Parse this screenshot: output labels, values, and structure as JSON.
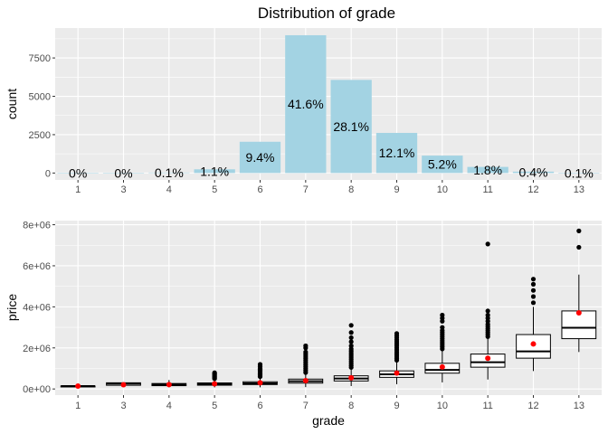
{
  "chart_data": [
    {
      "type": "bar",
      "title": "Distribution of grade",
      "xlabel": "",
      "ylabel": "count",
      "categories": [
        "1",
        "3",
        "4",
        "5",
        "6",
        "7",
        "8",
        "9",
        "10",
        "11",
        "12",
        "13"
      ],
      "values": [
        1,
        3,
        29,
        242,
        2038,
        8981,
        6068,
        2615,
        1134,
        399,
        90,
        13
      ],
      "data_labels": [
        "0%",
        "0%",
        "0.1%",
        "1.1%",
        "9.4%",
        "41.6%",
        "28.1%",
        "12.1%",
        "5.2%",
        "1.8%",
        "0.4%",
        "0.1%"
      ],
      "ylim": [
        -450,
        9450
      ],
      "yticks": [
        0,
        2500,
        5000,
        7500
      ],
      "ytick_labels": [
        "0",
        "2500",
        "5000",
        "7500"
      ],
      "colors": {
        "bar": "#a3d3e3",
        "panel": "#ebebeb",
        "grid": "#ffffff"
      }
    },
    {
      "type": "boxplot",
      "title": "",
      "xlabel": "grade",
      "ylabel": "price",
      "categories": [
        "1",
        "3",
        "4",
        "5",
        "6",
        "7",
        "8",
        "9",
        "10",
        "11",
        "12",
        "13"
      ],
      "boxes": [
        {
          "min": 142000,
          "q1": 142000,
          "median": 142000,
          "q3": 142000,
          "max": 142000,
          "mean": 142000,
          "outliers": []
        },
        {
          "min": 90000,
          "q1": 180000,
          "median": 262000,
          "q3": 300000,
          "max": 300000,
          "mean": 205667,
          "outliers": []
        },
        {
          "min": 80000,
          "q1": 160000,
          "median": 205000,
          "q3": 265000,
          "max": 435000,
          "mean": 214381,
          "outliers": []
        },
        {
          "min": 78000,
          "q1": 183000,
          "median": 228700,
          "q3": 294000,
          "max": 460000,
          "mean": 248524,
          "outliers": [
            500000,
            550000,
            600000,
            650000,
            700000,
            750000,
            790000
          ]
        },
        {
          "min": 82000,
          "q1": 215000,
          "median": 275000,
          "q3": 350000,
          "max": 550000,
          "mean": 301920,
          "outliers": [
            600000,
            650000,
            700000,
            750000,
            800000,
            850000,
            900000,
            950000,
            1000000,
            1100000,
            1200000
          ]
        },
        {
          "min": 90000,
          "q1": 285000,
          "median": 375000,
          "q3": 480000,
          "max": 770000,
          "mean": 402596,
          "outliers": [
            800000,
            900000,
            1000000,
            1100000,
            1200000,
            1300000,
            1400000,
            1500000,
            1600000,
            1700000,
            1800000,
            2000000,
            2100000
          ]
        },
        {
          "min": 140000,
          "q1": 390000,
          "median": 510000,
          "q3": 640000,
          "max": 1000000,
          "mean": 542896,
          "outliers": [
            1050000,
            1150000,
            1250000,
            1350000,
            1450000,
            1550000,
            1650000,
            1750000,
            1850000,
            1950000,
            2100000,
            2300000,
            2500000,
            2750000,
            3100000
          ]
        },
        {
          "min": 230000,
          "q1": 565000,
          "median": 715000,
          "q3": 880000,
          "max": 1350000,
          "mean": 773513,
          "outliers": [
            1400000,
            1500000,
            1600000,
            1700000,
            1800000,
            1900000,
            2000000,
            2100000,
            2200000,
            2300000,
            2400000,
            2500000,
            2600000,
            2700000
          ]
        },
        {
          "min": 320000,
          "q1": 770000,
          "median": 930000,
          "q3": 1250000,
          "max": 1900000,
          "mean": 1071771,
          "outliers": [
            1950000,
            2050000,
            2150000,
            2250000,
            2350000,
            2450000,
            2550000,
            2650000,
            2750000,
            2850000,
            3000000,
            3300000,
            3450000,
            3600000
          ]
        },
        {
          "min": 460000,
          "q1": 1060000,
          "median": 1300000,
          "q3": 1700000,
          "max": 2500000,
          "mean": 1496842,
          "outliers": [
            2550000,
            2650000,
            2750000,
            2850000,
            2950000,
            3050000,
            3150000,
            3300000,
            3450000,
            3600000,
            3800000,
            7060000
          ]
        },
        {
          "min": 870000,
          "q1": 1500000,
          "median": 1830000,
          "q3": 2650000,
          "max": 4000000,
          "mean": 2191222,
          "outliers": [
            4200000,
            4500000,
            4800000,
            5100000,
            5350000
          ]
        },
        {
          "min": 1800000,
          "q1": 2450000,
          "median": 2980000,
          "q3": 3800000,
          "max": 5570000,
          "mean": 3709615,
          "outliers": [
            6900000,
            7700000
          ]
        }
      ],
      "ylim": [
        -300000,
        8200000
      ],
      "yticks": [
        0,
        2000000,
        4000000,
        6000000,
        8000000
      ],
      "ytick_labels": [
        "0e+00",
        "2e+06",
        "4e+06",
        "6e+06",
        "8e+06"
      ],
      "colors": {
        "box_fill": "#ffffff",
        "box_line": "#000000",
        "mean": "#ff0000",
        "outlier": "#000000",
        "panel": "#ebebeb",
        "grid": "#ffffff"
      }
    }
  ]
}
